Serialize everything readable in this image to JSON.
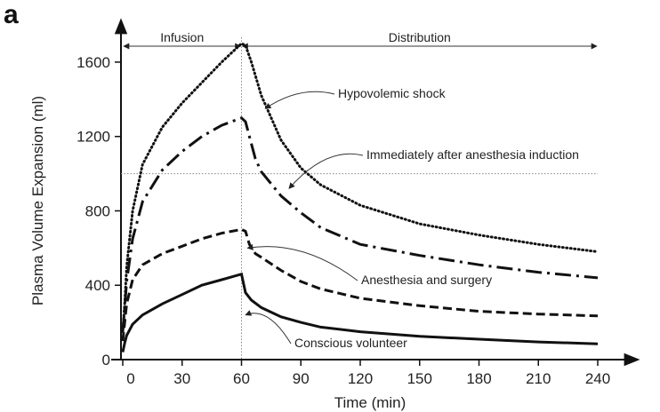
{
  "panel_label": "a",
  "chart_data": {
    "type": "line",
    "title": "",
    "xlabel": "Time (min)",
    "ylabel": "Plasma Volume Expansion (ml)",
    "xlim": [
      0,
      240
    ],
    "ylim": [
      0,
      1700
    ],
    "x_ticks": [
      0,
      30,
      60,
      90,
      120,
      150,
      180,
      210,
      240
    ],
    "y_ticks": [
      0,
      400,
      800,
      1200,
      1600
    ],
    "grid": false,
    "reference_lines": {
      "vertical_x": 60,
      "horizontal_y": 1000
    },
    "phases": [
      {
        "label": "Infusion",
        "from": 0,
        "to": 60
      },
      {
        "label": "Distribution",
        "from": 60,
        "to": 240
      }
    ],
    "series": [
      {
        "name": "Hypovolemic shock",
        "style": "dotted",
        "x": [
          0,
          1,
          2,
          5,
          10,
          20,
          30,
          40,
          50,
          60,
          62,
          65,
          70,
          80,
          90,
          100,
          120,
          150,
          180,
          210,
          240
        ],
        "y": [
          150,
          300,
          500,
          800,
          1050,
          1250,
          1380,
          1490,
          1600,
          1700,
          1690,
          1600,
          1420,
          1180,
          1030,
          940,
          830,
          730,
          670,
          620,
          580
        ]
      },
      {
        "name": "Immediately after anesthesia induction",
        "style": "dash-dot",
        "x": [
          0,
          1,
          2,
          5,
          10,
          20,
          30,
          40,
          50,
          60,
          62,
          64,
          67,
          70,
          80,
          90,
          100,
          120,
          150,
          180,
          210,
          240
        ],
        "y": [
          150,
          280,
          420,
          650,
          850,
          1020,
          1120,
          1200,
          1260,
          1300,
          1280,
          1200,
          1080,
          1010,
          880,
          790,
          710,
          620,
          560,
          510,
          470,
          440
        ]
      },
      {
        "name": "Anesthesia and surgery",
        "style": "dashed",
        "x": [
          0,
          1,
          2,
          5,
          10,
          20,
          30,
          40,
          50,
          60,
          62,
          64,
          67,
          70,
          80,
          90,
          100,
          120,
          150,
          180,
          210,
          240
        ],
        "y": [
          100,
          200,
          300,
          430,
          510,
          570,
          610,
          650,
          680,
          700,
          690,
          620,
          570,
          550,
          480,
          420,
          380,
          330,
          290,
          260,
          245,
          235
        ]
      },
      {
        "name": "Conscious volunteer",
        "style": "solid",
        "x": [
          0,
          1,
          2,
          5,
          10,
          20,
          30,
          40,
          50,
          60,
          62,
          65,
          70,
          80,
          90,
          100,
          120,
          150,
          180,
          210,
          240
        ],
        "y": [
          40,
          90,
          130,
          190,
          240,
          300,
          350,
          400,
          430,
          460,
          360,
          320,
          280,
          230,
          200,
          175,
          150,
          125,
          110,
          95,
          85
        ]
      }
    ],
    "annotations": [
      {
        "text": "Hypovolemic shock",
        "points_to_x": 72,
        "points_to_y": 1350
      },
      {
        "text": "Immediately after anesthesia induction",
        "points_to_x": 84,
        "points_to_y": 920
      },
      {
        "text": "Anesthesia and surgery",
        "points_to_x": 63,
        "points_to_y": 600
      },
      {
        "text": "Conscious volunteer",
        "points_to_x": 62,
        "points_to_y": 240
      }
    ]
  }
}
